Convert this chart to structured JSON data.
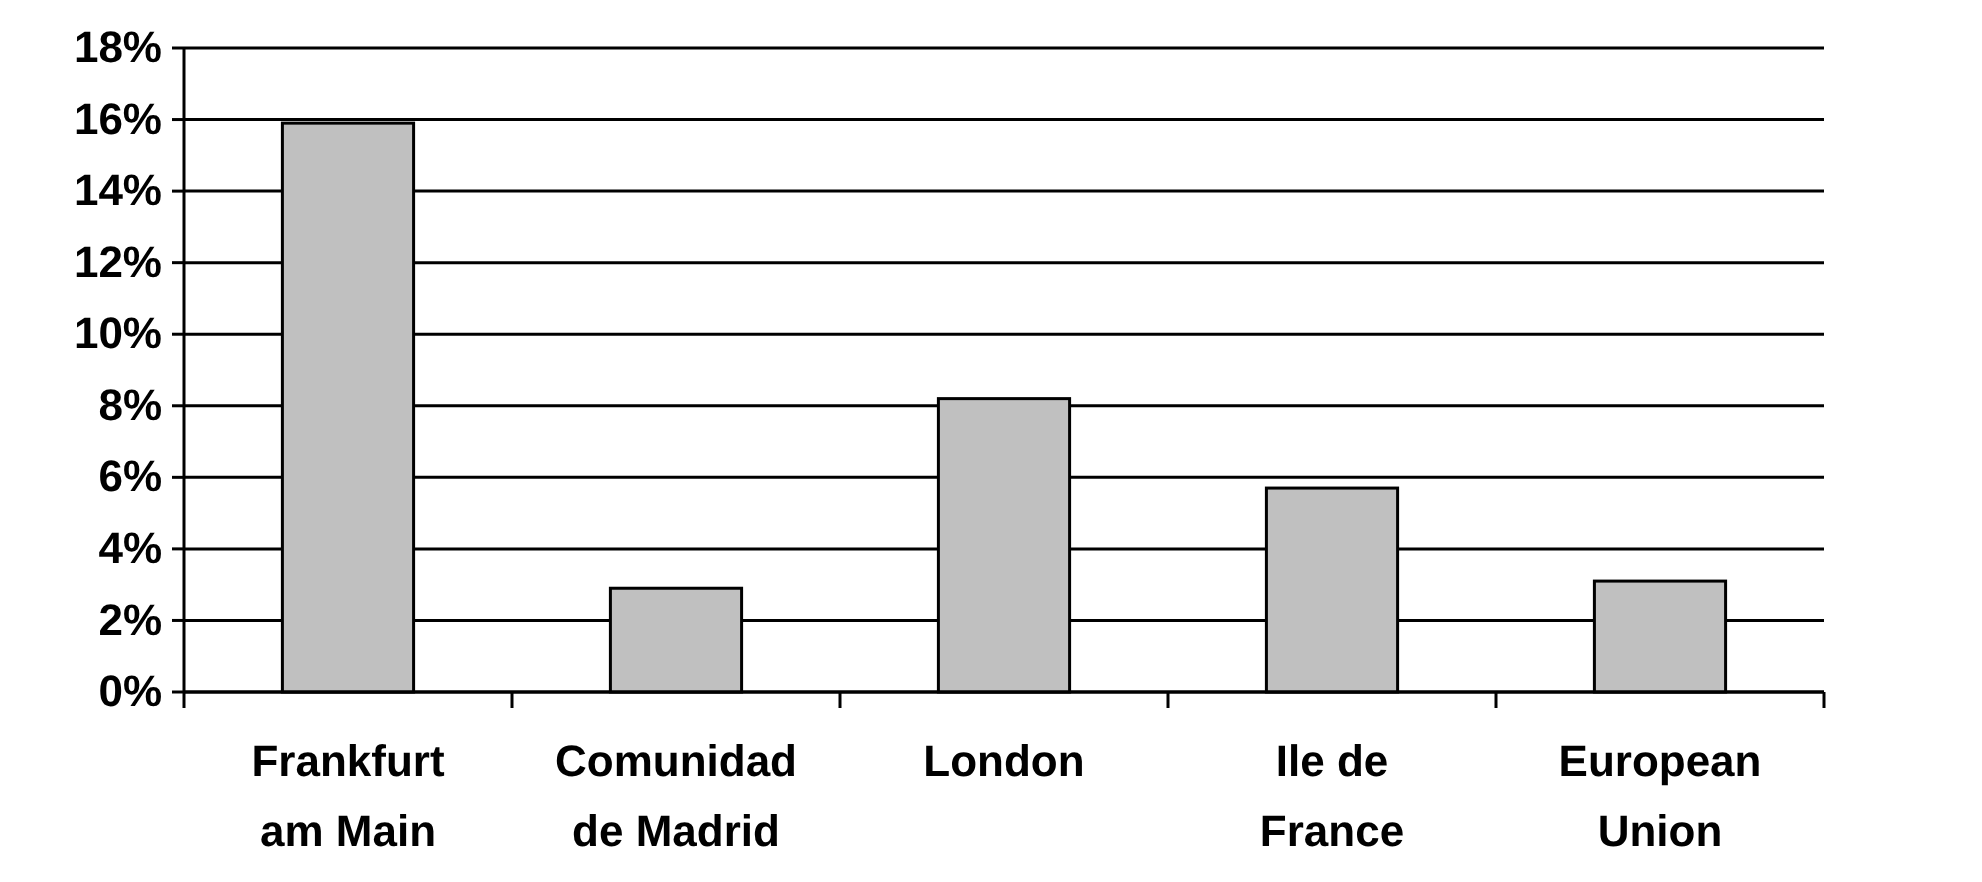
{
  "chart_data": {
    "type": "bar",
    "categories": [
      "Frankfurt am Main",
      "Comunidad de Madrid",
      "London",
      "Ile de France",
      "European Union"
    ],
    "values": [
      15.9,
      2.9,
      8.2,
      5.7,
      3.1
    ],
    "color": "#c0c0c0",
    "ylim": [
      0,
      18
    ],
    "yticks": [
      {
        "value": 0,
        "label": "0%"
      },
      {
        "value": 2,
        "label": "2%"
      },
      {
        "value": 4,
        "label": "4%"
      },
      {
        "value": 6,
        "label": "6%"
      },
      {
        "value": 8,
        "label": "8%"
      },
      {
        "value": 10,
        "label": "10%"
      },
      {
        "value": 12,
        "label": "12%"
      },
      {
        "value": 14,
        "label": "14%"
      },
      {
        "value": 16,
        "label": "16%"
      },
      {
        "value": 18,
        "label": "18%"
      }
    ],
    "grid": "y"
  }
}
